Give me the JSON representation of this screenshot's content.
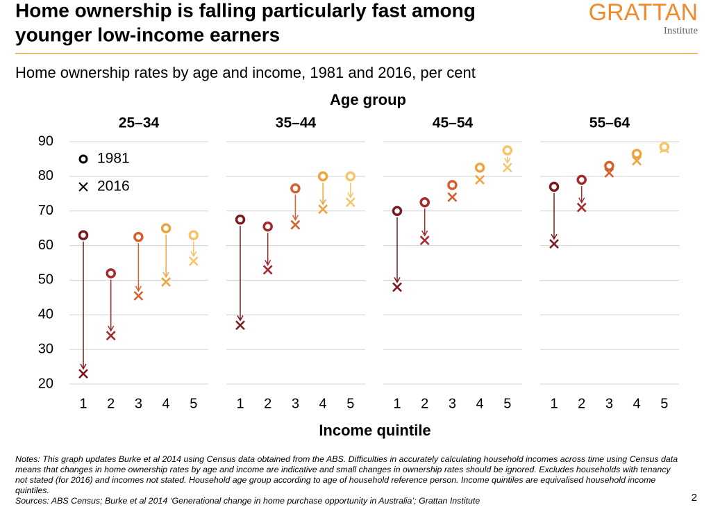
{
  "header": {
    "title_lines": [
      "Home ownership is falling particularly fast among",
      "younger low-income earners"
    ],
    "logo": "GRATTAN",
    "logo_sub": "Institute"
  },
  "chart_data": {
    "type": "arrow-dot",
    "title": "Home ownership rates by age and income, 1981 and 2016, per cent",
    "panel_group_label": "Age group",
    "x_label": "Income quintile",
    "categories": [
      "1",
      "2",
      "3",
      "4",
      "5"
    ],
    "colors": [
      "#7a1a1e",
      "#a52a2e",
      "#d4602e",
      "#eea43e",
      "#f6c46a"
    ],
    "legend": [
      "1981",
      "2016"
    ],
    "ylim": [
      20,
      90
    ],
    "yticks": [
      20,
      30,
      40,
      50,
      60,
      70,
      80,
      90
    ],
    "grid": true,
    "panels": [
      {
        "title": "25–34",
        "1981": [
          63,
          52,
          62.5,
          65,
          63
        ],
        "2016": [
          23,
          34,
          45.5,
          49.5,
          55.5
        ]
      },
      {
        "title": "35–44",
        "1981": [
          67.5,
          65.5,
          76.5,
          80,
          80
        ],
        "2016": [
          37,
          53,
          66,
          70.5,
          72.5
        ]
      },
      {
        "title": "45–54",
        "1981": [
          70,
          72.5,
          77.5,
          82.5,
          87.5
        ],
        "2016": [
          48,
          61.5,
          74,
          79,
          82.5
        ]
      },
      {
        "title": "55–64",
        "1981": [
          77,
          79,
          83,
          86.5,
          88.5
        ],
        "2016": [
          60.5,
          71,
          81,
          84.5,
          88
        ]
      }
    ]
  },
  "footer": {
    "notes": "Notes: This graph updates Burke et al 2014 using Census data obtained from the ABS. Difficulties in accurately calculating household incomes across time using Census data means that changes in home ownership rates by age and income are indicative and small changes in ownership rates should be ignored. Excludes households with tenancy not stated (for 2016) and incomes not stated. Household age group according to age of household reference person. Income quintiles are equivalised household income quintiles.",
    "sources": "Sources: ABS Census; Burke et al 2014 ‘Generational change in home purchase opportunity in Australia’; Grattan Institute",
    "page": "2"
  }
}
